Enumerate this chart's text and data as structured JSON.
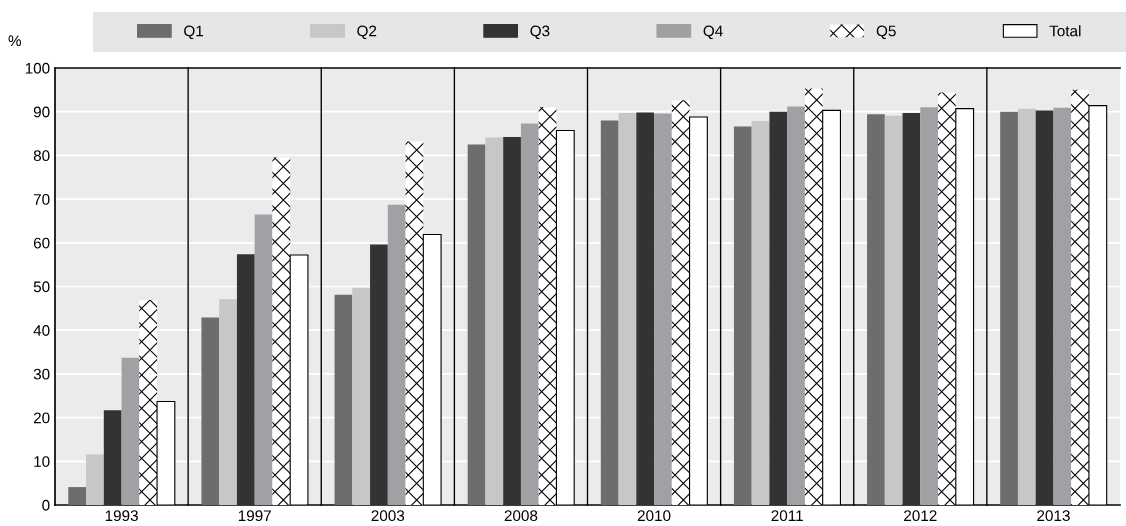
{
  "chart_data": {
    "type": "bar",
    "categories": [
      "1993",
      "1997",
      "2003",
      "2008",
      "2010",
      "2011",
      "2012",
      "2013"
    ],
    "ylabel": "%",
    "ylim": [
      0,
      100
    ],
    "yticks": [
      0,
      10,
      20,
      30,
      40,
      50,
      60,
      70,
      80,
      90,
      100
    ],
    "grid": true,
    "legend": "top",
    "series": [
      {
        "name": "Q1",
        "color": "#6d6d6f",
        "values": [
          4.1,
          42.9,
          48.1,
          82.5,
          88.0,
          86.6,
          89.4,
          90.0
        ]
      },
      {
        "name": "Q2",
        "color": "#c6c7c9",
        "values": [
          11.6,
          47.1,
          49.7,
          84.1,
          89.7,
          87.9,
          89.1,
          90.7
        ]
      },
      {
        "name": "Q3",
        "color": "#333333",
        "values": [
          21.7,
          57.4,
          59.6,
          84.2,
          89.8,
          90.0,
          89.7,
          90.3
        ]
      },
      {
        "name": "Q4",
        "color": "#a0a1a4",
        "values": [
          33.7,
          66.5,
          68.7,
          87.3,
          89.6,
          91.2,
          91.0,
          90.9
        ]
      },
      {
        "name": "Q5",
        "color": "#ffffff",
        "values": [
          46.9,
          79.5,
          83.2,
          91.0,
          92.6,
          95.3,
          94.4,
          95.0
        ]
      },
      {
        "name": "Total",
        "color": "#ffffff",
        "values": [
          23.7,
          57.2,
          61.9,
          85.7,
          88.8,
          90.3,
          90.7,
          91.4
        ]
      }
    ]
  }
}
